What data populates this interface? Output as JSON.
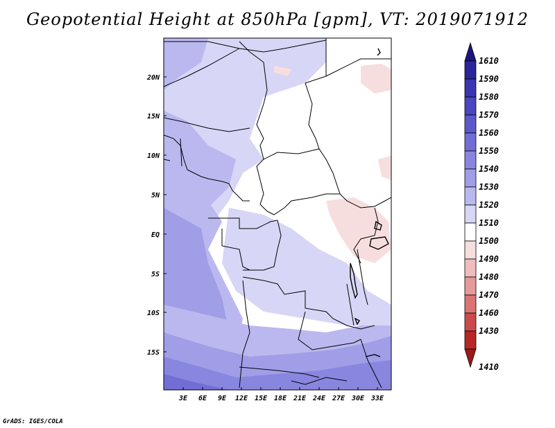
{
  "title": "Geopotential Height at 850hPa [gpm], VT: 2019071912",
  "footer": "GrADS: IGES/COLA",
  "map": {
    "lat_ticks": [
      "20N",
      "15N",
      "10N",
      "5N",
      "EQ",
      "5S",
      "10S",
      "15S"
    ],
    "lon_ticks": [
      "3E",
      "6E",
      "9E",
      "12E",
      "15E",
      "18E",
      "21E",
      "24E",
      "27E",
      "30E",
      "33E"
    ]
  },
  "colorbar": {
    "levels": [
      "1610",
      "1590",
      "1580",
      "1570",
      "1560",
      "1550",
      "1540",
      "1530",
      "1520",
      "1510",
      "1500",
      "1490",
      "1480",
      "1470",
      "1460",
      "1430",
      "1410"
    ],
    "colors": [
      "#1c1680",
      "#2a259a",
      "#3a35b0",
      "#4a45c0",
      "#5c58cc",
      "#716ed6",
      "#8886de",
      "#a09ee6",
      "#bab8ee",
      "#d7d6f6",
      "#ffffff",
      "#f7dede",
      "#f0bcbc",
      "#e69a9a",
      "#dc7474",
      "#cc4a4a",
      "#b82626",
      "#9c1a1a"
    ]
  }
}
